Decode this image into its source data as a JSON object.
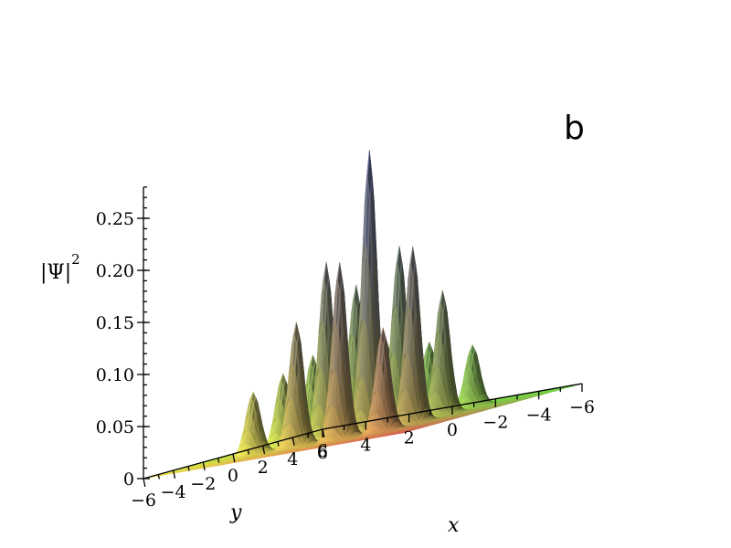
{
  "chart_data": {
    "type": "surface3d",
    "panel_label": "b",
    "zlabel": "|Ψ|",
    "zlabel_exponent": "2",
    "xlabel": "x",
    "ylabel": "y",
    "xlim": [
      -6,
      6
    ],
    "ylim": [
      -6,
      6
    ],
    "zlim": [
      0,
      0.28
    ],
    "x_ticks": [
      "−6",
      "−4",
      "−2",
      "0",
      "2",
      "4",
      "6"
    ],
    "y_ticks": [
      "−6",
      "−4",
      "−2",
      "0",
      "2",
      "4",
      "6"
    ],
    "z_ticks": [
      "0",
      "0.05",
      "0.10",
      "0.15",
      "0.20",
      "0.25"
    ],
    "z_tick_values": [
      0,
      0.05,
      0.1,
      0.15,
      0.2,
      0.25
    ],
    "peaks": [
      {
        "x": -1,
        "y": -1,
        "z": 0.27
      },
      {
        "x": -1,
        "y": 1,
        "z": 0.17
      },
      {
        "x": 1,
        "y": -1,
        "z": 0.17
      },
      {
        "x": -3,
        "y": -1,
        "z": 0.17
      },
      {
        "x": -1,
        "y": -3,
        "z": 0.17
      },
      {
        "x": 1,
        "y": 1,
        "z": 0.14
      },
      {
        "x": -3,
        "y": 1,
        "z": 0.12
      },
      {
        "x": 1,
        "y": -3,
        "z": 0.12
      },
      {
        "x": 3,
        "y": -1,
        "z": 0.07
      },
      {
        "x": -1,
        "y": 3,
        "z": 0.07
      },
      {
        "x": -3,
        "y": -3,
        "z": 0.1
      },
      {
        "x": 3,
        "y": 1,
        "z": 0.08
      },
      {
        "x": 1,
        "y": 3,
        "z": 0.08
      },
      {
        "x": -3,
        "y": 3,
        "z": 0.06
      },
      {
        "x": 3,
        "y": -3,
        "z": 0.06
      },
      {
        "x": 3,
        "y": 3,
        "z": 0.02
      }
    ],
    "grid": false
  }
}
